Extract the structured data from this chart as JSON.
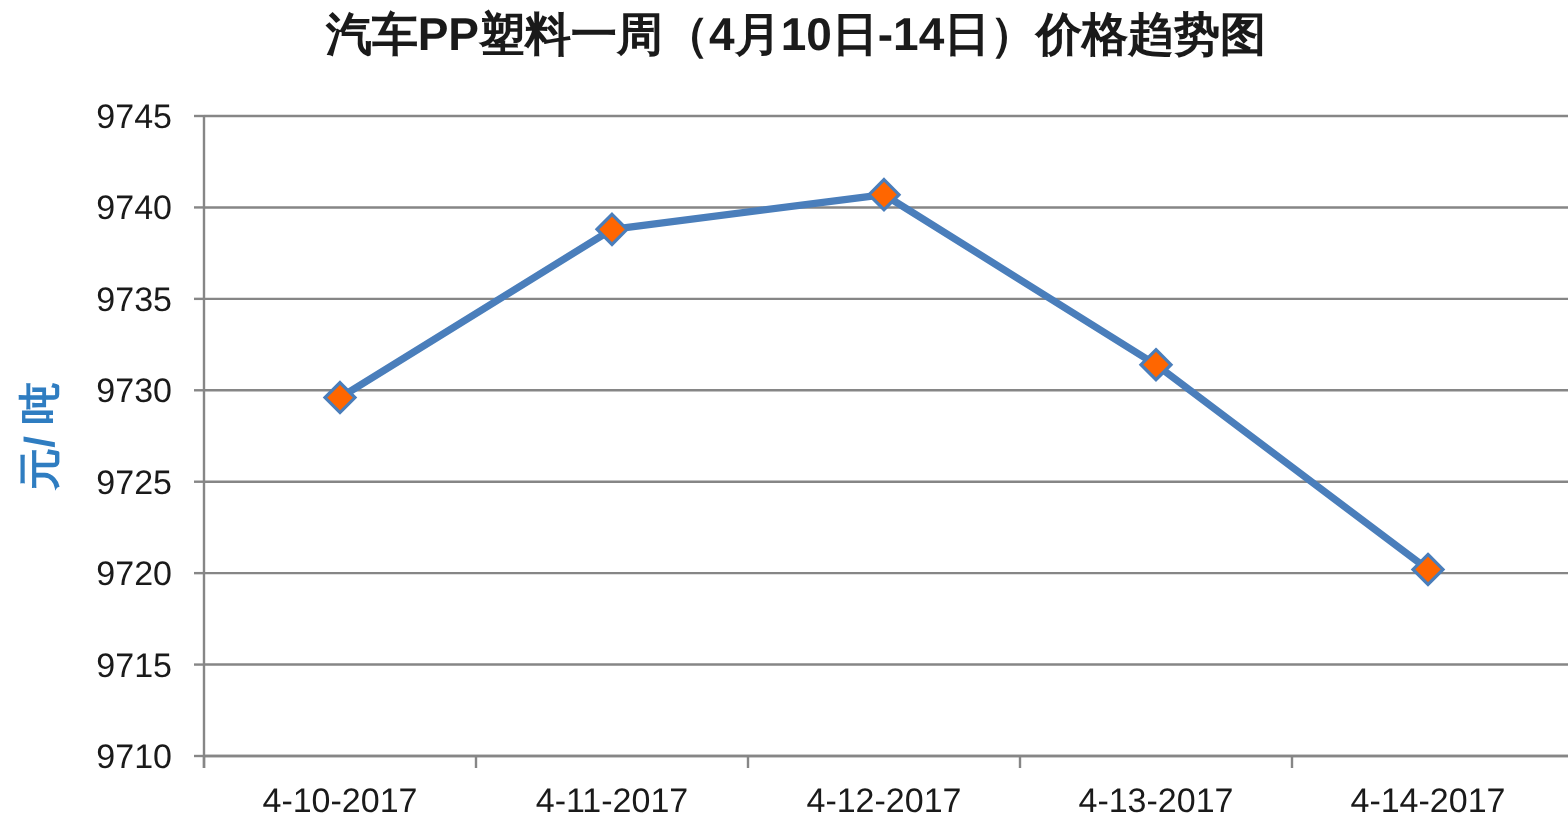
{
  "chart_data": {
    "type": "line",
    "title": "汽车PP塑料一周（4月10日-14日）价格趋势图",
    "ylabel": "元/ 吨",
    "categories": [
      "4-10-2017",
      "4-11-2017",
      "4-12-2017",
      "4-13-2017",
      "4-14-2017"
    ],
    "series": [
      {
        "color": "#4a7ebb",
        "colors": [
          "#ff6600",
          "#ff6600",
          "#ff6600",
          "#ff6600",
          "#ff6600"
        ],
        "values": [
          9729.6,
          9738.8,
          9740.7,
          9731.4,
          9720.2
        ]
      }
    ],
    "ylim": [
      9710,
      9745
    ],
    "yticks": [
      9710,
      9715,
      9720,
      9725,
      9730,
      9735,
      9740,
      9745
    ],
    "grid": "y",
    "marker": "diamond",
    "line_style": "solid"
  }
}
